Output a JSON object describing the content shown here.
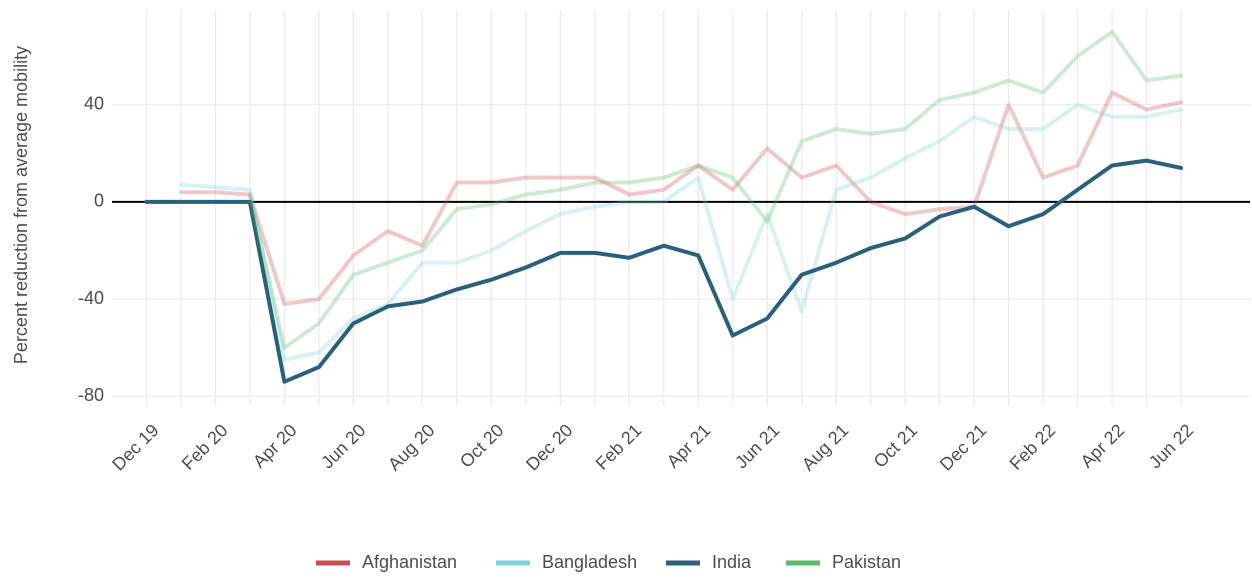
{
  "chart_data": {
    "type": "line",
    "y_label": "Percent reduction from average mobility",
    "x": [
      "2019-12",
      "2020-01",
      "2020-02",
      "2020-03",
      "2020-04",
      "2020-05",
      "2020-06",
      "2020-07",
      "2020-08",
      "2020-09",
      "2020-10",
      "2020-11",
      "2020-12",
      "2021-01",
      "2021-02",
      "2021-03",
      "2021-04",
      "2021-05",
      "2021-06",
      "2021-07",
      "2021-08",
      "2021-09",
      "2021-10",
      "2021-11",
      "2021-12",
      "2022-01",
      "2022-02",
      "2022-03",
      "2022-04",
      "2022-05",
      "2022-06"
    ],
    "series": [
      {
        "name": "Afghanistan",
        "color": "#c84b55",
        "alpha": 0.3,
        "values": [
          null,
          4,
          4,
          3,
          -42,
          -40,
          -22,
          -12,
          -18,
          8,
          8,
          10,
          10,
          10,
          3,
          5,
          15,
          5,
          22,
          10,
          15,
          0,
          -5,
          -3,
          -2,
          40,
          10,
          15,
          45,
          38,
          41
        ]
      },
      {
        "name": "Bangladesh",
        "color": "#7fd3dc",
        "alpha": 0.3,
        "values": [
          null,
          7,
          6,
          5,
          -65,
          -62,
          -48,
          -42,
          -25,
          -25,
          -20,
          -12,
          -5,
          -2,
          0,
          0,
          10,
          -40,
          -5,
          -45,
          5,
          10,
          18,
          25,
          35,
          30,
          30,
          40,
          35,
          35,
          38
        ]
      },
      {
        "name": "India",
        "color": "#2b6079",
        "alpha": 1,
        "values": [
          0,
          0,
          0,
          0,
          -74,
          -68,
          -50,
          -43,
          -41,
          -36,
          -32,
          -27,
          -21,
          -21,
          -23,
          -18,
          -22,
          -55,
          -48,
          -30,
          -25,
          -19,
          -15,
          -6,
          -2,
          -10,
          -5,
          5,
          15,
          17,
          14
        ]
      },
      {
        "name": "Pakistan",
        "color": "#5fb96a",
        "alpha": 0.3,
        "values": [
          null,
          null,
          null,
          3,
          -60,
          -50,
          -30,
          -25,
          -20,
          -3,
          -1,
          3,
          5,
          8,
          8,
          10,
          15,
          10,
          -8,
          25,
          30,
          28,
          30,
          42,
          45,
          50,
          45,
          60,
          70,
          50,
          52
        ]
      }
    ],
    "xlim": [
      "2019-11",
      "2022-08"
    ],
    "xticks": [
      {
        "value": "2019-12",
        "label": "Dec 19"
      },
      {
        "value": "2020-02",
        "label": "Feb 20"
      },
      {
        "value": "2020-04",
        "label": "Apr 20"
      },
      {
        "value": "2020-06",
        "label": "Jun 20"
      },
      {
        "value": "2020-08",
        "label": "Aug 20"
      },
      {
        "value": "2020-10",
        "label": "Oct 20"
      },
      {
        "value": "2020-12",
        "label": "Dec 20"
      },
      {
        "value": "2021-02",
        "label": "Feb 21"
      },
      {
        "value": "2021-04",
        "label": "Apr 21"
      },
      {
        "value": "2021-06",
        "label": "Jun 21"
      },
      {
        "value": "2021-08",
        "label": "Aug 21"
      },
      {
        "value": "2021-10",
        "label": "Oct 21"
      },
      {
        "value": "2021-12",
        "label": "Dec 21"
      },
      {
        "value": "2022-02",
        "label": "Feb 22"
      },
      {
        "value": "2022-04",
        "label": "Apr 22"
      },
      {
        "value": "2022-06",
        "label": "Jun 22"
      }
    ],
    "ylim": [
      -84,
      79
    ],
    "yticks": [
      -80,
      -40,
      0,
      40
    ],
    "grid": true,
    "legend": "bottom"
  }
}
